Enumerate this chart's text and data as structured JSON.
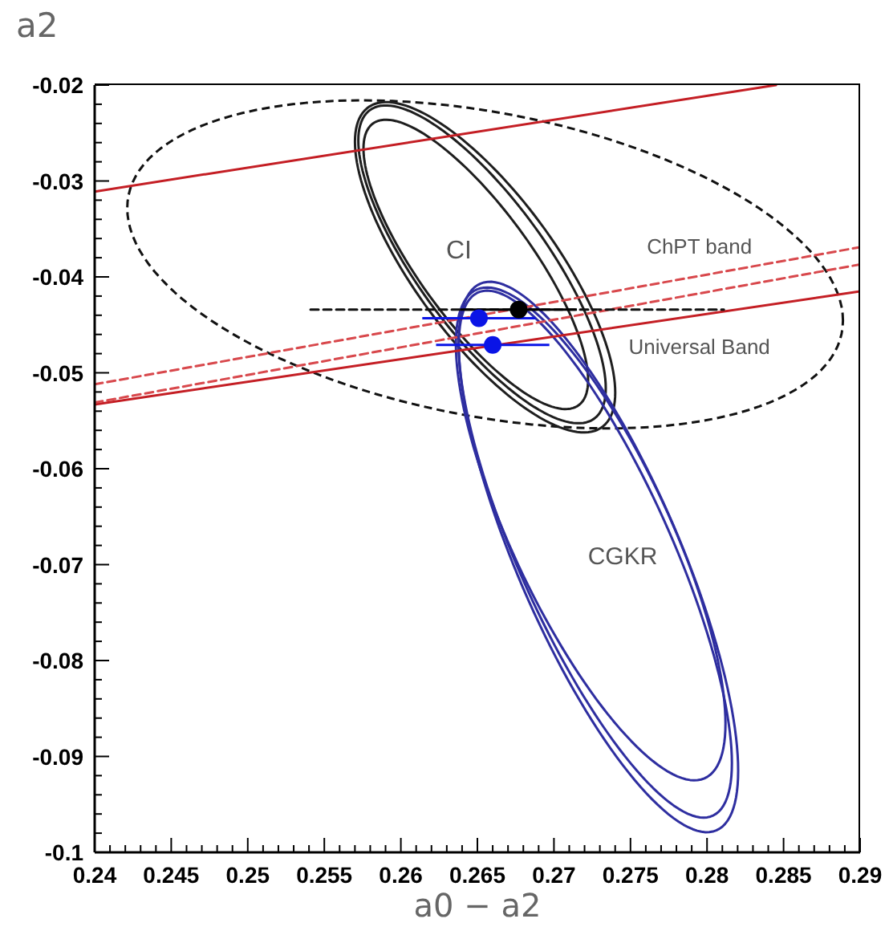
{
  "chart_data": {
    "type": "line",
    "xlabel": "a0 − a2",
    "ylabel": "a2",
    "xlim": [
      0.24,
      0.29
    ],
    "ylim": [
      -0.1,
      -0.02
    ],
    "xticks": [
      0.24,
      {
        "value": 0.241,
        "label": null
      },
      {
        "value": 0.242,
        "label": null
      },
      {
        "value": 0.243,
        "label": null
      },
      {
        "value": 0.244,
        "label": null
      },
      0.245,
      {
        "value": 0.246,
        "label": null
      },
      {
        "value": 0.247,
        "label": null
      },
      {
        "value": 0.248,
        "label": null
      },
      {
        "value": 0.249,
        "label": null
      },
      0.25,
      {
        "value": 0.251,
        "label": null
      },
      {
        "value": 0.252,
        "label": null
      },
      {
        "value": 0.253,
        "label": null
      },
      {
        "value": 0.254,
        "label": null
      },
      0.255,
      {
        "value": 0.256,
        "label": null
      },
      {
        "value": 0.257,
        "label": null
      },
      {
        "value": 0.258,
        "label": null
      },
      {
        "value": 0.259,
        "label": null
      },
      0.26,
      {
        "value": 0.261,
        "label": null
      },
      {
        "value": 0.262,
        "label": null
      },
      {
        "value": 0.263,
        "label": null
      },
      {
        "value": 0.264,
        "label": null
      },
      0.265,
      {
        "value": 0.266,
        "label": null
      },
      {
        "value": 0.267,
        "label": null
      },
      {
        "value": 0.268,
        "label": null
      },
      {
        "value": 0.269,
        "label": null
      },
      0.27,
      {
        "value": 0.271,
        "label": null
      },
      {
        "value": 0.272,
        "label": null
      },
      {
        "value": 0.273,
        "label": null
      },
      {
        "value": 0.274,
        "label": null
      },
      0.275,
      {
        "value": 0.276,
        "label": null
      },
      {
        "value": 0.277,
        "label": null
      },
      {
        "value": 0.278,
        "label": null
      },
      {
        "value": 0.279,
        "label": null
      },
      0.28,
      {
        "value": 0.281,
        "label": null
      },
      {
        "value": 0.282,
        "label": null
      },
      {
        "value": 0.283,
        "label": null
      },
      {
        "value": 0.284,
        "label": null
      },
      0.285,
      {
        "value": 0.286,
        "label": null
      },
      {
        "value": 0.287,
        "label": null
      },
      {
        "value": 0.288,
        "label": null
      },
      {
        "value": 0.289,
        "label": null
      },
      0.29
    ],
    "yticks": [
      -0.1,
      {
        "value": -0.098,
        "label": null
      },
      {
        "value": -0.096,
        "label": null
      },
      {
        "value": -0.094,
        "label": null
      },
      {
        "value": -0.092,
        "label": null
      },
      -0.09,
      {
        "value": -0.088,
        "label": null
      },
      {
        "value": -0.086,
        "label": null
      },
      {
        "value": -0.084,
        "label": null
      },
      {
        "value": -0.082,
        "label": null
      },
      -0.08,
      {
        "value": -0.078,
        "label": null
      },
      {
        "value": -0.076,
        "label": null
      },
      {
        "value": -0.074,
        "label": null
      },
      {
        "value": -0.072,
        "label": null
      },
      -0.07,
      {
        "value": -0.068,
        "label": null
      },
      {
        "value": -0.066,
        "label": null
      },
      {
        "value": -0.064,
        "label": null
      },
      {
        "value": -0.062,
        "label": null
      },
      -0.06,
      {
        "value": -0.058,
        "label": null
      },
      {
        "value": -0.056,
        "label": null
      },
      {
        "value": -0.054,
        "label": null
      },
      {
        "value": -0.052,
        "label": null
      },
      -0.05,
      {
        "value": -0.048,
        "label": null
      },
      {
        "value": -0.046,
        "label": null
      },
      {
        "value": -0.044,
        "label": null
      },
      {
        "value": -0.042,
        "label": null
      },
      -0.04,
      {
        "value": -0.038,
        "label": null
      },
      {
        "value": -0.036,
        "label": null
      },
      {
        "value": -0.034,
        "label": null
      },
      {
        "value": -0.032,
        "label": null
      },
      -0.03,
      {
        "value": -0.028,
        "label": null
      },
      {
        "value": -0.026,
        "label": null
      },
      {
        "value": -0.024,
        "label": null
      },
      {
        "value": -0.022,
        "label": null
      },
      -0.02
    ],
    "annotations": [
      "CI",
      "CGKR"
    ],
    "series": [
      {
        "color": "#c41e24",
        "x": [
          0.24,
          0.2845
        ],
        "values": [
          -0.0311,
          -0.02
        ]
      },
      {
        "name": "Universal Band",
        "color": "#c41e24",
        "x": [
          0.24,
          0.29
        ],
        "values": [
          -0.0533,
          -0.0415
        ]
      },
      {
        "name": "ChPT band",
        "color": "#d8484c",
        "line_style": "dashed",
        "x": [
          0.24,
          0.29
        ],
        "values": [
          -0.0512,
          -0.0369
        ]
      },
      {
        "color": "#d8484c",
        "line_style": "dashed",
        "x": [
          0.24,
          0.29
        ],
        "values": [
          -0.0531,
          -0.0387
        ]
      },
      {
        "color": "#111111",
        "line_style": "dashed",
        "x": [
          0.2541,
          0.2811
        ],
        "values": [
          -0.0434,
          -0.0434
        ]
      },
      {
        "type": "scatter",
        "color": "#000000",
        "marker": "circle",
        "x": [
          0.2677
        ],
        "values": [
          -0.0434
        ],
        "xerrors": [
          0.0038
        ]
      },
      {
        "type": "scatter",
        "color": "#0a14e6",
        "marker": "circle",
        "x": [
          0.2651,
          0.266
        ],
        "values": [
          -0.0443,
          -0.0471
        ],
        "xerrors": [
          0.0037,
          0.0037
        ]
      }
    ]
  }
}
